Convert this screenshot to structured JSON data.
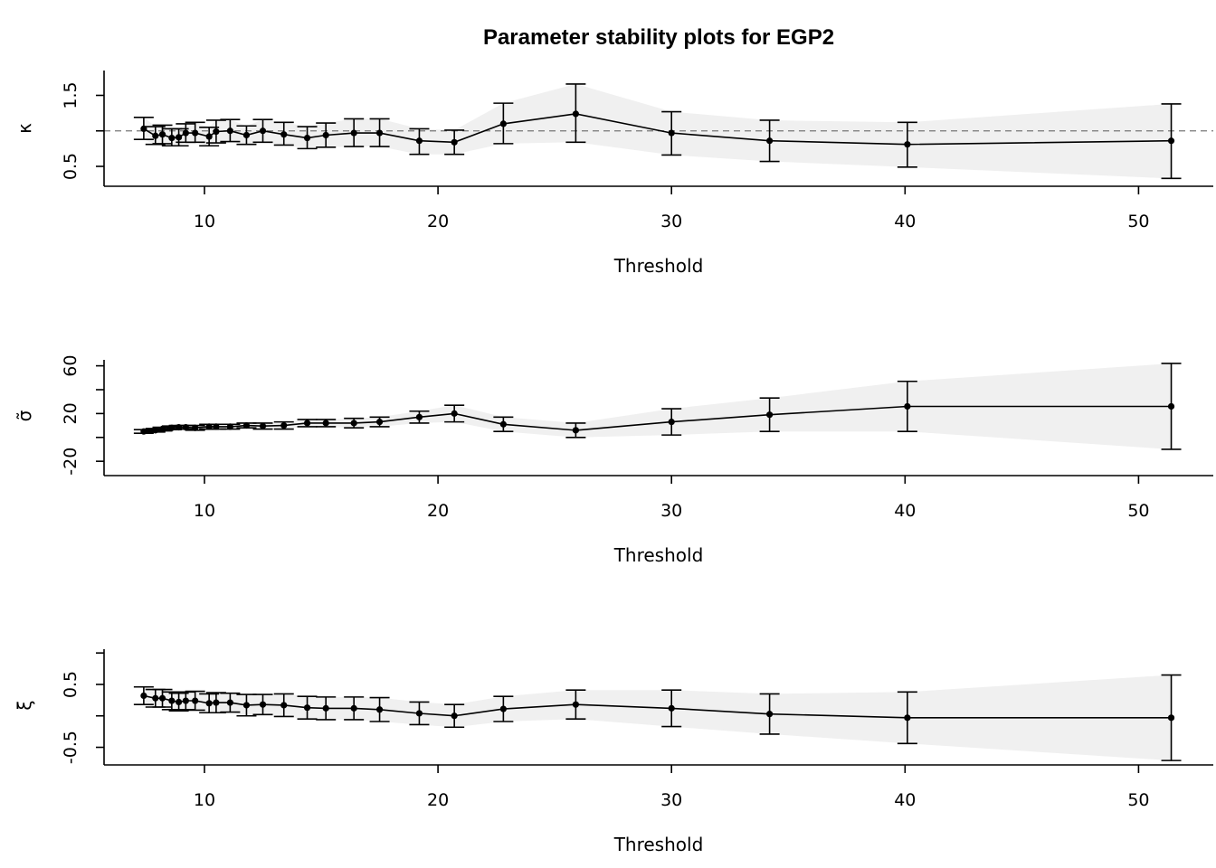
{
  "title": "Parameter stability plots for EGP2",
  "chart_data": [
    {
      "type": "line",
      "panel": "kappa",
      "ylabel": "κ",
      "xlabel": "Threshold",
      "xlim": [
        5.7,
        53.2
      ],
      "ylim": [
        0.22,
        1.85
      ],
      "xticks": [
        10,
        20,
        30,
        40,
        50
      ],
      "yticks": [
        0.5,
        1.0,
        1.5
      ],
      "ytick_labels": [
        "0.5",
        "",
        "1.5"
      ],
      "reference_line": 1.0,
      "x": [
        7.4,
        7.9,
        8.2,
        8.6,
        8.9,
        9.2,
        9.6,
        10.2,
        10.5,
        11.1,
        11.8,
        12.5,
        13.4,
        14.4,
        15.2,
        16.4,
        17.5,
        19.2,
        20.7,
        22.8,
        25.9,
        30.0,
        34.2,
        40.1,
        51.4
      ],
      "y": [
        1.03,
        0.93,
        0.95,
        0.9,
        0.91,
        0.97,
        0.97,
        0.92,
        0.99,
        1.0,
        0.94,
        1.0,
        0.95,
        0.9,
        0.94,
        0.97,
        0.97,
        0.86,
        0.84,
        1.1,
        1.24,
        0.97,
        0.86,
        0.81,
        0.86
      ],
      "lower": [
        0.88,
        0.81,
        0.82,
        0.79,
        0.79,
        0.84,
        0.84,
        0.79,
        0.83,
        0.85,
        0.81,
        0.84,
        0.8,
        0.75,
        0.77,
        0.78,
        0.78,
        0.67,
        0.67,
        0.82,
        0.84,
        0.66,
        0.57,
        0.49,
        0.33
      ],
      "upper": [
        1.19,
        1.06,
        1.08,
        1.03,
        1.03,
        1.1,
        1.12,
        1.05,
        1.15,
        1.16,
        1.07,
        1.16,
        1.12,
        1.06,
        1.11,
        1.17,
        1.17,
        1.03,
        1.01,
        1.39,
        1.66,
        1.27,
        1.15,
        1.12,
        1.38
      ]
    },
    {
      "type": "line",
      "panel": "sigma",
      "ylabel": "σ̃",
      "xlabel": "Threshold",
      "xlim": [
        5.7,
        53.2
      ],
      "ylim": [
        -32,
        65
      ],
      "xticks": [
        10,
        20,
        30,
        40,
        50
      ],
      "yticks": [
        -20,
        0,
        20,
        40,
        60
      ],
      "ytick_labels": [
        "-20",
        "",
        "20",
        "",
        "60"
      ],
      "x": [
        7.4,
        7.9,
        8.2,
        8.6,
        8.9,
        9.2,
        9.6,
        10.2,
        10.5,
        11.1,
        11.8,
        12.5,
        13.4,
        14.4,
        15.2,
        16.4,
        17.5,
        19.2,
        20.7,
        22.8,
        25.9,
        30.0,
        34.2,
        40.1,
        51.4
      ],
      "y": [
        5.0,
        6.0,
        7.0,
        8.0,
        8.5,
        8.5,
        8.0,
        9.0,
        9.0,
        9.0,
        10.0,
        9.5,
        10.0,
        12.0,
        12.0,
        12.0,
        13.0,
        17.0,
        20.0,
        11.0,
        6.0,
        13.0,
        19.0,
        26.0,
        26.0
      ],
      "lower": [
        3.5,
        4.5,
        5.5,
        6.5,
        7.0,
        7.0,
        6.0,
        7.0,
        7.0,
        7.0,
        8.0,
        7.0,
        7.0,
        9.0,
        9.0,
        8.0,
        9.0,
        12.0,
        13.0,
        5.0,
        0.0,
        2.0,
        5.0,
        5.0,
        -10.0
      ],
      "upper": [
        6.5,
        7.5,
        8.5,
        9.5,
        10.0,
        10.0,
        10.0,
        11.0,
        11.0,
        11.0,
        12.0,
        12.0,
        13.0,
        15.0,
        15.0,
        16.0,
        17.0,
        22.0,
        27.0,
        17.0,
        12.0,
        24.0,
        33.0,
        47.0,
        62.0
      ]
    },
    {
      "type": "line",
      "panel": "xi",
      "ylabel": "ξ",
      "xlabel": "Threshold",
      "xlim": [
        5.7,
        53.2
      ],
      "ylim": [
        -0.78,
        1.06
      ],
      "xticks": [
        10,
        20,
        30,
        40,
        50
      ],
      "yticks": [
        -0.5,
        0.0,
        0.5,
        1.0
      ],
      "ytick_labels": [
        "-0.5",
        "",
        "0.5",
        ""
      ],
      "x": [
        7.4,
        7.9,
        8.2,
        8.6,
        8.9,
        9.2,
        9.6,
        10.2,
        10.5,
        11.1,
        11.8,
        12.5,
        13.4,
        14.4,
        15.2,
        16.4,
        17.5,
        19.2,
        20.7,
        22.8,
        25.9,
        30.0,
        34.2,
        40.1,
        51.4
      ],
      "y": [
        0.32,
        0.28,
        0.28,
        0.24,
        0.22,
        0.24,
        0.24,
        0.2,
        0.21,
        0.21,
        0.17,
        0.18,
        0.17,
        0.13,
        0.12,
        0.12,
        0.1,
        0.04,
        0.0,
        0.11,
        0.18,
        0.12,
        0.03,
        -0.03,
        -0.03
      ],
      "lower": [
        0.18,
        0.14,
        0.14,
        0.1,
        0.08,
        0.1,
        0.09,
        0.05,
        0.05,
        0.06,
        0.0,
        0.02,
        -0.01,
        -0.05,
        -0.06,
        -0.06,
        -0.09,
        -0.14,
        -0.18,
        -0.09,
        -0.05,
        -0.17,
        -0.29,
        -0.44,
        -0.71
      ],
      "upper": [
        0.46,
        0.42,
        0.42,
        0.38,
        0.36,
        0.38,
        0.39,
        0.35,
        0.37,
        0.36,
        0.34,
        0.34,
        0.35,
        0.31,
        0.3,
        0.3,
        0.29,
        0.22,
        0.18,
        0.31,
        0.41,
        0.41,
        0.35,
        0.38,
        0.65
      ]
    }
  ]
}
